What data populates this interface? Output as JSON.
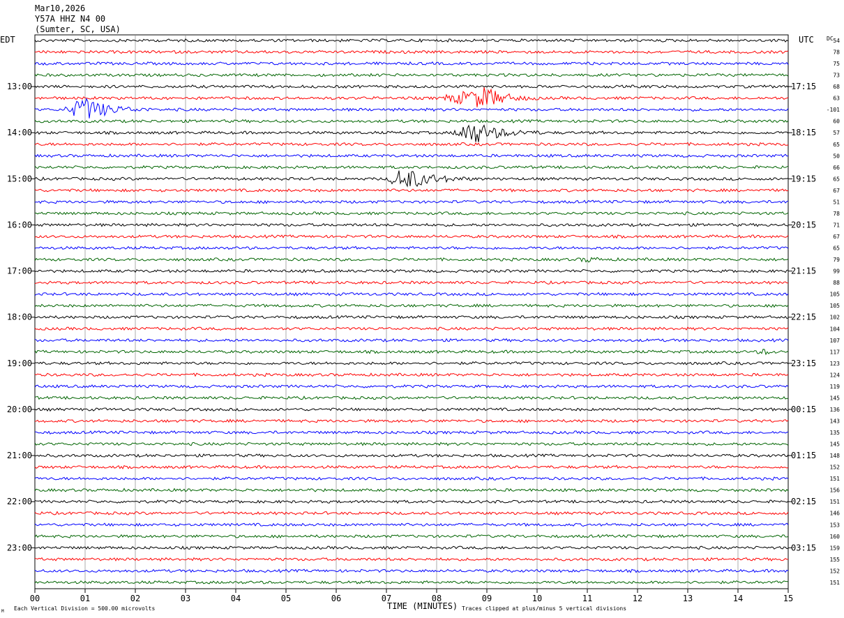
{
  "header": {
    "date": "Mar10,2026",
    "station": "Y57A HHZ N4 00",
    "location": "(Sumter, SC, USA)"
  },
  "labels": {
    "left_tz": "EDT",
    "right_tz": "UTC",
    "dc_label": "DC"
  },
  "footer": {
    "scale_note": "Each Vertical Division =  500.00 microvolts",
    "xlabel": "TIME (MINUTES)",
    "clip_note": "Traces clipped at plus/minus 5 vertical divisions",
    "corner_mark": "M"
  },
  "chart_data": {
    "type": "line",
    "title": "",
    "xlabel": "TIME (MINUTES)",
    "xlim": [
      0,
      15
    ],
    "x_ticks": [
      "00",
      "01",
      "02",
      "03",
      "04",
      "05",
      "06",
      "07",
      "08",
      "09",
      "10",
      "11",
      "12",
      "13",
      "14",
      "15"
    ],
    "left_time_labels": [
      "13:00",
      "14:00",
      "15:00",
      "16:00",
      "17:00",
      "18:00",
      "19:00",
      "20:00",
      "21:00",
      "22:00",
      "23:00"
    ],
    "right_time_labels": [
      "17:15",
      "18:15",
      "19:15",
      "20:15",
      "21:15",
      "22:15",
      "23:15",
      "00:15",
      "01:15",
      "02:15",
      "03:15"
    ],
    "time_label_first_row": 4,
    "time_label_row_step": 4,
    "trace_colors": [
      "#000000",
      "#ff0000",
      "#0000ff",
      "#006400"
    ],
    "dc_offsets": [
      "54",
      "78",
      "75",
      "73",
      "68",
      "63",
      "-101",
      "60",
      "57",
      "65",
      "50",
      "66",
      "65",
      "67",
      "51",
      "78",
      "71",
      "67",
      "65",
      "79",
      "99",
      "88",
      "105",
      "105",
      "102",
      "104",
      "107",
      "117",
      "123",
      "124",
      "119",
      "145",
      "136",
      "143",
      "135",
      "145",
      "148",
      "152",
      "151",
      "156",
      "151",
      "146",
      "153",
      "160",
      "159",
      "155",
      "152",
      "151"
    ],
    "trace_rows": 48,
    "events": [
      {
        "row": 6,
        "start_min": 0.55,
        "end_min": 2.3,
        "peak_min": 1.0,
        "amp_div": 5.0
      },
      {
        "row": 5,
        "start_min": 8.0,
        "end_min": 10.0,
        "peak_min": 9.0,
        "amp_div": 4.5
      },
      {
        "row": 8,
        "start_min": 8.3,
        "end_min": 10.1,
        "peak_min": 8.7,
        "amp_div": 5.0
      },
      {
        "row": 12,
        "start_min": 7.0,
        "end_min": 8.7,
        "peak_min": 7.35,
        "amp_div": 5.0
      },
      {
        "row": 27,
        "start_min": 14.35,
        "end_min": 14.85,
        "peak_min": 14.55,
        "amp_div": 1.0
      },
      {
        "row": 19,
        "start_min": 10.8,
        "end_min": 11.6,
        "peak_min": 11.0,
        "amp_div": 0.9
      },
      {
        "row": 39,
        "start_min": 5.35,
        "end_min": 5.6,
        "peak_min": 5.45,
        "amp_div": 0.5
      }
    ]
  }
}
